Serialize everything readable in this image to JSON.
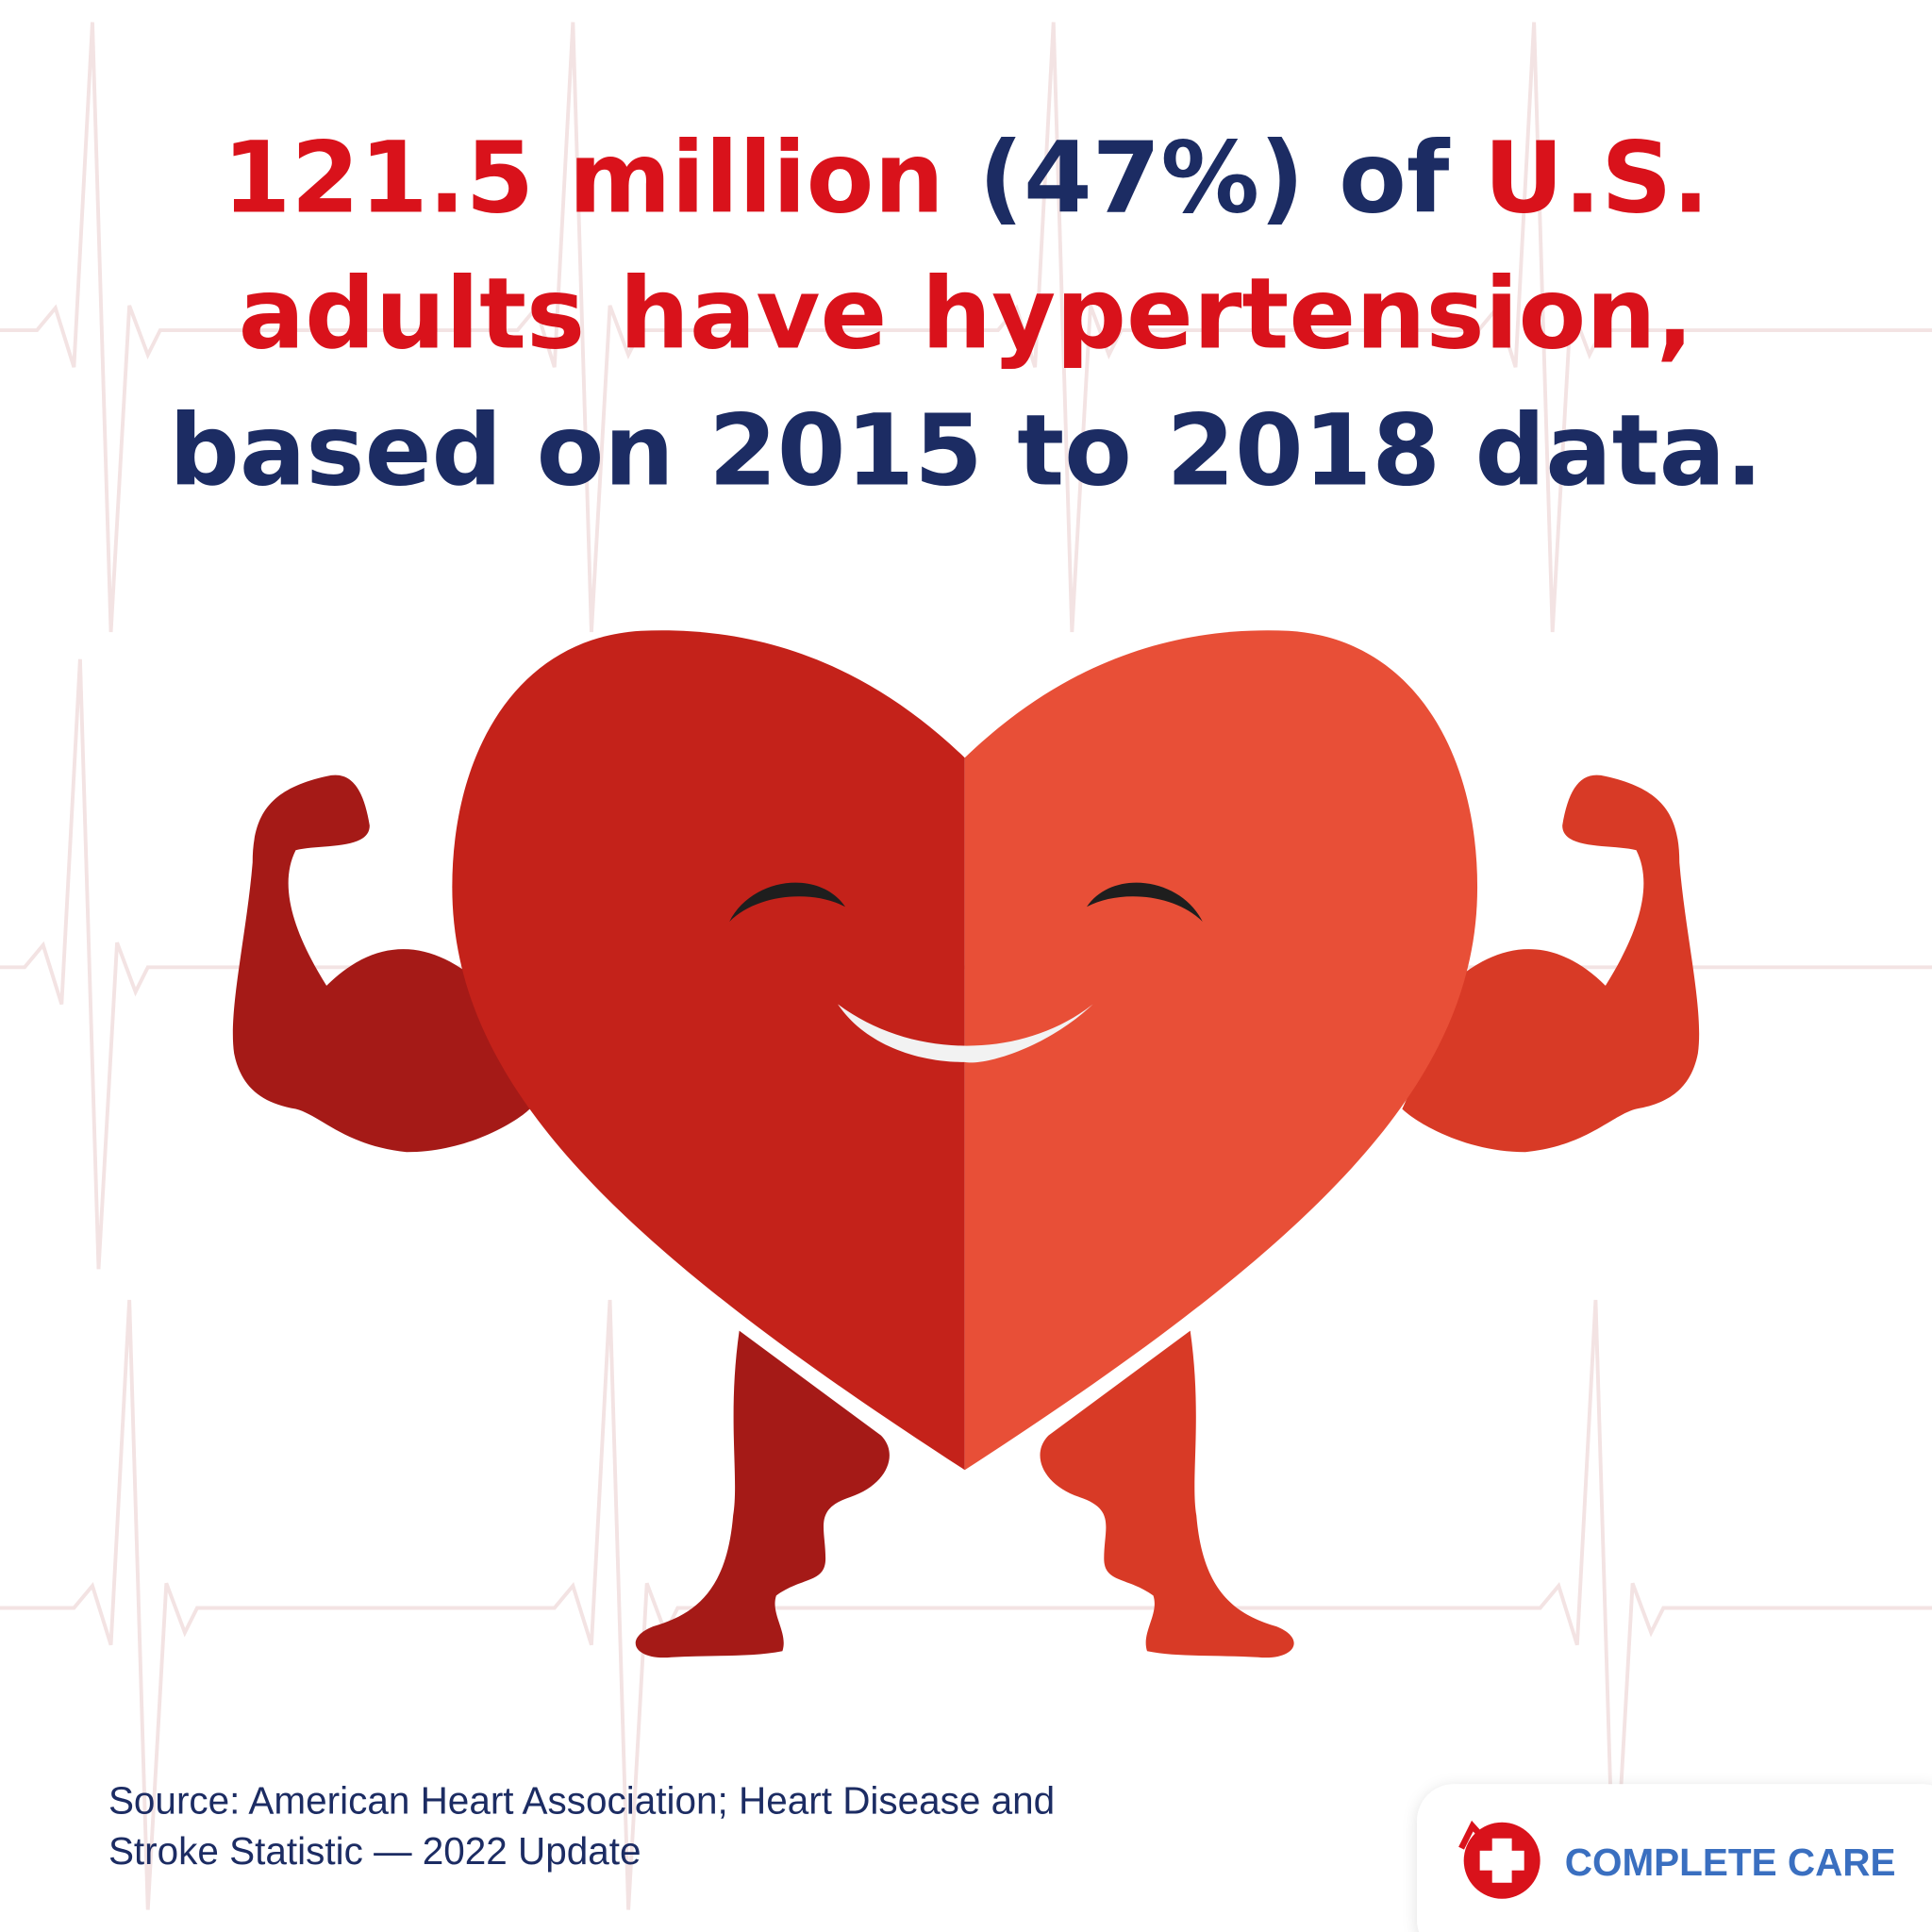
{
  "headline": {
    "lines": [
      [
        "121.5 million",
        "(47%)",
        "of",
        "U.S."
      ],
      [
        "adults have hypertension,"
      ],
      [
        "based on 2015 to 2018 data."
      ]
    ]
  },
  "source": {
    "lines": [
      "Source: American Heart Association; Heart Disease and",
      "Stroke Statistic — 2022 Update"
    ]
  },
  "logo": {
    "text": "COMPLETE CARE"
  }
}
